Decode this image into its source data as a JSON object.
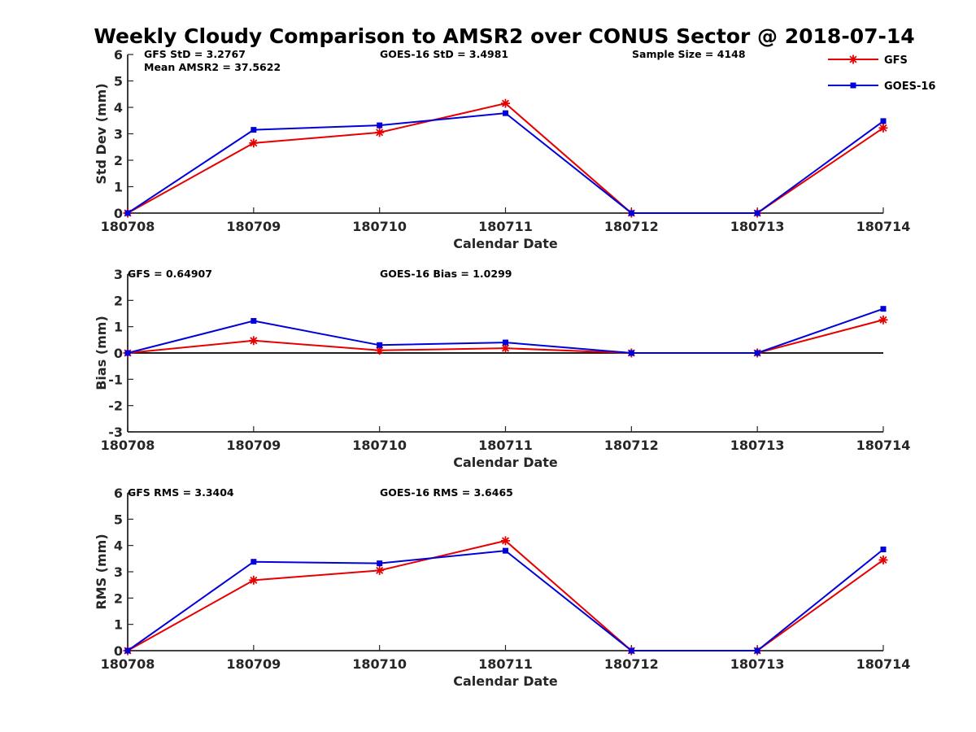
{
  "title": "Weekly Cloudy Comparison to AMSR2 over CONUS Sector @ 2018-07-14",
  "colors": {
    "GFS": "#e60000",
    "GOES-16": "#0000d9",
    "axis": "#262626",
    "zero": "#000000"
  },
  "legend": [
    {
      "name": "GFS",
      "marker": "asterisk"
    },
    {
      "name": "GOES-16",
      "marker": "square"
    }
  ],
  "chart_data": [
    {
      "id": "std",
      "type": "line",
      "xlabel": "Calendar Date",
      "ylabel": "Std Dev (mm)",
      "ylim": [
        0,
        6
      ],
      "yticks": [
        0,
        1,
        2,
        3,
        4,
        5,
        6
      ],
      "categories": [
        "180708",
        "180709",
        "180710",
        "180711",
        "180712",
        "180713",
        "180714"
      ],
      "series": [
        {
          "name": "GFS",
          "values": [
            0,
            2.65,
            3.05,
            4.15,
            0,
            0,
            3.22
          ]
        },
        {
          "name": "GOES-16",
          "values": [
            0,
            3.15,
            3.32,
            3.78,
            0,
            0,
            3.48
          ]
        }
      ],
      "annotations": [
        "GFS StD = 3.2767",
        "GOES-16 StD = 3.4981",
        "Sample Size = 4148",
        "Mean AMSR2 = 37.5622"
      ],
      "zero_line": false
    },
    {
      "id": "bias",
      "type": "line",
      "xlabel": "Calendar Date",
      "ylabel": "Bias (mm)",
      "ylim": [
        -3,
        3
      ],
      "yticks": [
        -3,
        -2,
        -1,
        0,
        1,
        2,
        3
      ],
      "categories": [
        "180708",
        "180709",
        "180710",
        "180711",
        "180712",
        "180713",
        "180714"
      ],
      "series": [
        {
          "name": "GFS",
          "values": [
            0,
            0.47,
            0.1,
            0.18,
            0,
            0,
            1.26
          ]
        },
        {
          "name": "GOES-16",
          "values": [
            0,
            1.22,
            0.3,
            0.4,
            0,
            0,
            1.68
          ]
        }
      ],
      "annotations": [
        "GFS = 0.64907",
        "GOES-16 Bias  = 1.0299"
      ],
      "zero_line": true
    },
    {
      "id": "rms",
      "type": "line",
      "xlabel": "Calendar Date",
      "ylabel": "RMS (mm)",
      "ylim": [
        0,
        6
      ],
      "yticks": [
        0,
        1,
        2,
        3,
        4,
        5,
        6
      ],
      "categories": [
        "180708",
        "180709",
        "180710",
        "180711",
        "180712",
        "180713",
        "180714"
      ],
      "series": [
        {
          "name": "GFS",
          "values": [
            0,
            2.68,
            3.05,
            4.18,
            0,
            0,
            3.45
          ]
        },
        {
          "name": "GOES-16",
          "values": [
            0,
            3.38,
            3.32,
            3.8,
            0,
            0,
            3.85
          ]
        }
      ],
      "annotations": [
        "GFS RMS = 3.3404",
        "GOES-16 RMS = 3.6465"
      ],
      "zero_line": false
    }
  ]
}
